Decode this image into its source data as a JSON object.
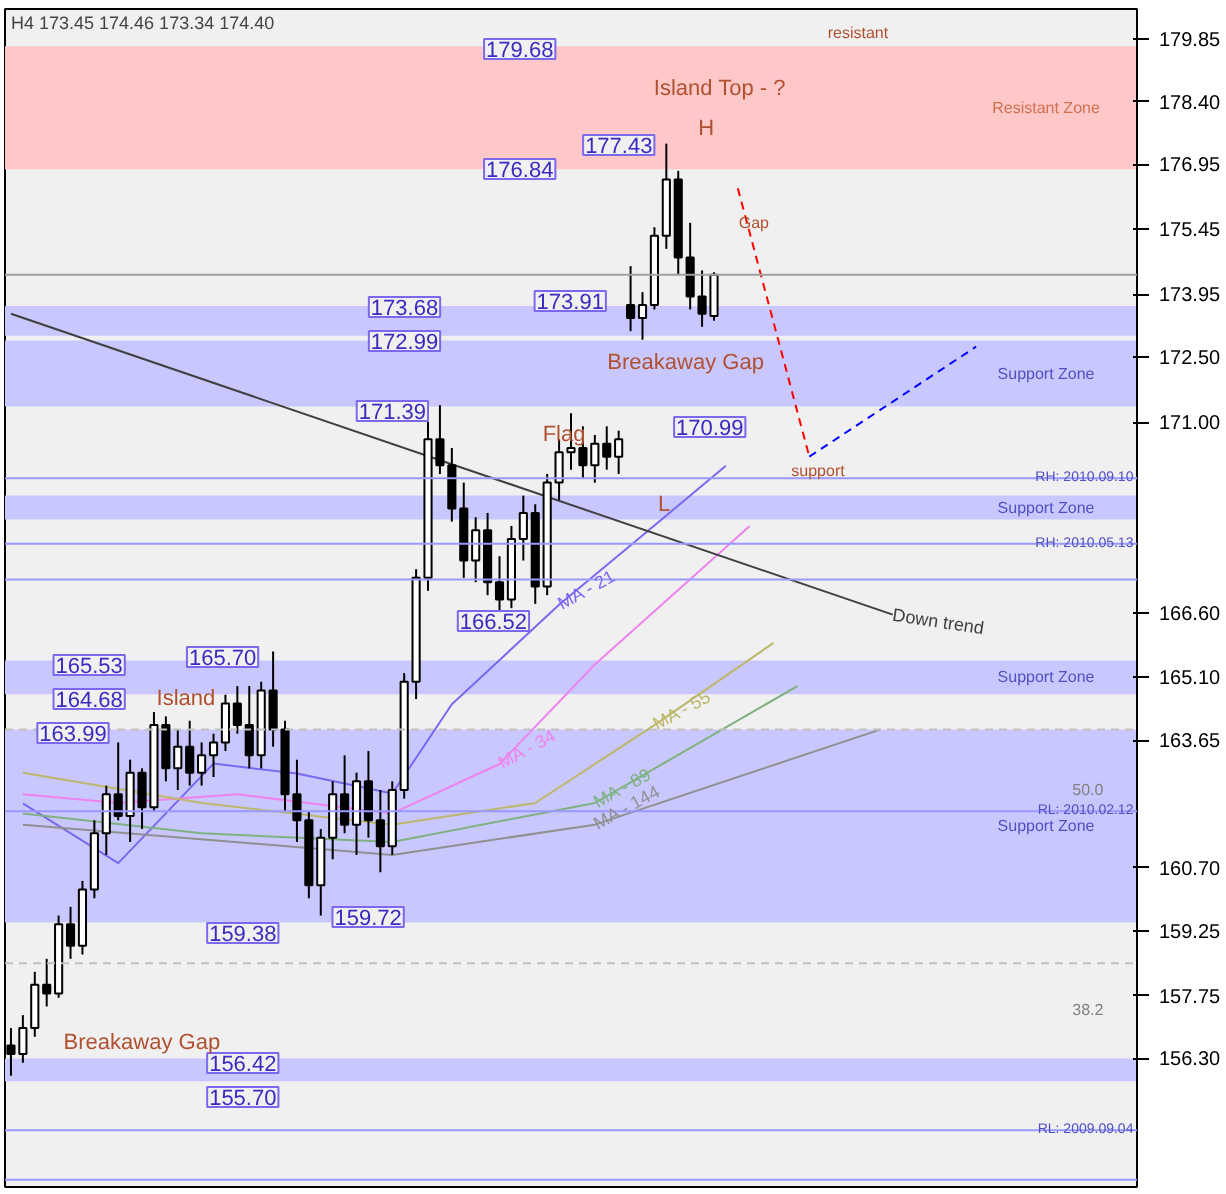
{
  "chart_data": {
    "type": "candlestick",
    "title": "H4 173.45 174.46 173.34 174.40",
    "categories": [
      null,
      null,
      null,
      null,
      null,
      null,
      null,
      null,
      null,
      null,
      null,
      null,
      null,
      null,
      null,
      null,
      null,
      null,
      null,
      null,
      null,
      null,
      null,
      null,
      null,
      null,
      null,
      null,
      null,
      null,
      null,
      null,
      null,
      null,
      null,
      null,
      null,
      null,
      null,
      null,
      null,
      null,
      null,
      null,
      null,
      null,
      null,
      null,
      null,
      null,
      null,
      null,
      null,
      null,
      null,
      null,
      null,
      null,
      null,
      null,
      null,
      null,
      null,
      null,
      null,
      null,
      null,
      null,
      null,
      null,
      null,
      null,
      null,
      null,
      null,
      null,
      null,
      null,
      null,
      null,
      null,
      null,
      null,
      null,
      null,
      null,
      null,
      null,
      null,
      null,
      null,
      null,
      null,
      null,
      null
    ],
    "ohlc": [
      [
        156.6,
        157.0,
        155.9,
        156.4
      ],
      [
        156.4,
        157.3,
        156.2,
        157.0
      ],
      [
        157.0,
        158.3,
        156.8,
        158.0
      ],
      [
        158.0,
        158.6,
        157.5,
        157.8
      ],
      [
        157.8,
        159.6,
        157.7,
        159.4
      ],
      [
        159.4,
        159.8,
        158.6,
        158.9
      ],
      [
        158.9,
        160.4,
        158.7,
        160.2
      ],
      [
        160.2,
        161.8,
        160.0,
        161.5
      ],
      [
        161.5,
        162.6,
        161.0,
        162.4
      ],
      [
        162.4,
        163.6,
        161.8,
        161.9
      ],
      [
        161.9,
        163.2,
        161.3,
        162.9
      ],
      [
        162.9,
        163.0,
        161.6,
        162.1
      ],
      [
        162.1,
        164.3,
        162.0,
        164.0
      ],
      [
        164.0,
        164.2,
        162.7,
        163.0
      ],
      [
        163.0,
        163.9,
        162.5,
        163.5
      ],
      [
        163.5,
        164.1,
        162.6,
        162.9
      ],
      [
        162.9,
        163.6,
        162.6,
        163.3
      ],
      [
        163.3,
        163.8,
        162.8,
        163.6
      ],
      [
        163.6,
        164.7,
        163.4,
        164.5
      ],
      [
        164.5,
        164.9,
        163.8,
        164.0
      ],
      [
        164.0,
        164.9,
        163.0,
        163.3
      ],
      [
        163.3,
        165.0,
        163.0,
        164.8
      ],
      [
        164.8,
        165.7,
        163.5,
        163.9
      ],
      [
        163.9,
        164.1,
        162.0,
        162.4
      ],
      [
        162.4,
        163.2,
        161.3,
        161.8
      ],
      [
        161.8,
        162.0,
        160.0,
        160.3
      ],
      [
        160.3,
        161.6,
        159.6,
        161.4
      ],
      [
        161.4,
        162.7,
        160.9,
        162.4
      ],
      [
        162.4,
        163.3,
        161.5,
        161.7
      ],
      [
        161.7,
        162.9,
        161.0,
        162.7
      ],
      [
        162.7,
        163.4,
        161.4,
        161.8
      ],
      [
        161.8,
        162.5,
        160.6,
        161.2
      ],
      [
        161.2,
        162.7,
        161.0,
        162.5
      ],
      [
        162.5,
        165.2,
        162.3,
        165.0
      ],
      [
        165.0,
        167.6,
        164.6,
        167.4
      ],
      [
        167.4,
        171.0,
        167.1,
        170.6
      ],
      [
        170.6,
        171.39,
        169.8,
        170.0
      ],
      [
        170.0,
        170.4,
        168.7,
        169.0
      ],
      [
        169.0,
        169.6,
        167.4,
        167.8
      ],
      [
        167.8,
        168.8,
        167.3,
        168.5
      ],
      [
        168.5,
        168.9,
        167.0,
        167.3
      ],
      [
        167.3,
        167.9,
        166.52,
        166.9
      ],
      [
        166.9,
        168.6,
        166.7,
        168.3
      ],
      [
        168.3,
        169.3,
        167.8,
        168.9
      ],
      [
        168.9,
        169.1,
        166.8,
        167.2
      ],
      [
        167.2,
        169.8,
        167.0,
        169.6
      ],
      [
        169.6,
        170.6,
        169.2,
        170.3
      ],
      [
        170.3,
        171.2,
        169.9,
        170.4
      ],
      [
        170.4,
        170.9,
        169.7,
        170.0
      ],
      [
        170.0,
        170.7,
        169.6,
        170.5
      ],
      [
        170.5,
        170.9,
        169.9,
        170.2
      ],
      [
        170.2,
        170.8,
        169.8,
        170.6
      ],
      [
        173.7,
        174.6,
        173.1,
        173.4
      ],
      [
        173.4,
        174.0,
        172.9,
        173.7
      ],
      [
        173.7,
        175.5,
        173.6,
        175.3
      ],
      [
        175.3,
        177.43,
        175.0,
        176.6
      ],
      [
        176.6,
        176.8,
        174.4,
        174.8
      ],
      [
        174.8,
        175.6,
        173.6,
        173.9
      ],
      [
        173.9,
        174.5,
        173.2,
        173.5
      ],
      [
        173.45,
        174.46,
        173.34,
        174.4
      ],
      null,
      null,
      null,
      null,
      null,
      null,
      null,
      null,
      null,
      null,
      null,
      null,
      null,
      null,
      null,
      null,
      null,
      null,
      null,
      null,
      null,
      null,
      null,
      null,
      null,
      null,
      null,
      null,
      null,
      null,
      null,
      null,
      null,
      null,
      null
    ],
    "series": [
      {
        "name": "MA - 21",
        "type": "line",
        "color": "#7b68ee",
        "values": [
          null,
          162.19,
          null,
          null,
          null,
          null,
          null,
          null,
          null,
          160.81,
          null,
          null,
          null,
          null,
          null,
          null,
          null,
          163.11,
          null,
          null,
          null,
          null,
          null,
          null,
          162.88,
          null,
          null,
          null,
          null,
          null,
          null,
          null,
          162.42,
          null,
          null,
          null,
          null,
          164.48,
          null,
          null,
          null,
          null,
          null,
          null,
          null,
          null,
          166.78,
          null,
          null,
          null,
          null,
          null,
          null,
          null,
          168.61,
          null,
          null,
          null,
          null,
          null,
          169.99,
          null,
          null,
          null,
          null,
          null,
          null,
          null,
          null,
          null,
          null,
          null,
          null,
          null,
          null,
          null,
          null,
          null,
          null,
          null,
          null,
          null,
          null,
          null,
          null,
          null,
          null,
          null,
          null,
          null,
          null,
          null,
          null,
          null,
          null
        ]
      },
      {
        "name": "MA - 34",
        "type": "line",
        "color": "#ee82ee",
        "values": [
          null,
          162.4,
          null,
          null,
          null,
          null,
          null,
          null,
          null,
          162.2,
          null,
          null,
          null,
          null,
          null,
          null,
          null,
          null,
          null,
          162.4,
          null,
          null,
          null,
          null,
          null,
          null,
          null,
          null,
          null,
          null,
          null,
          null,
          161.96,
          null,
          null,
          null,
          null,
          null,
          null,
          null,
          null,
          163.1,
          null,
          null,
          null,
          null,
          null,
          null,
          null,
          165.4,
          null,
          null,
          null,
          null,
          null,
          null,
          null,
          null,
          null,
          null,
          null,
          null,
          168.6,
          null,
          null,
          null,
          null,
          null,
          null,
          null,
          null,
          null,
          null,
          null,
          null,
          null,
          null,
          null,
          null,
          null,
          null,
          null,
          null,
          null,
          null,
          null,
          null,
          null,
          null,
          null,
          null,
          null,
          null,
          null,
          null
        ]
      },
      {
        "name": "MA - 55",
        "type": "line",
        "color": "#bdb76b",
        "values": [
          null,
          162.9,
          null,
          null,
          null,
          null,
          null,
          null,
          null,
          null,
          null,
          null,
          null,
          null,
          null,
          null,
          162.2,
          null,
          null,
          null,
          null,
          null,
          null,
          null,
          null,
          null,
          null,
          null,
          null,
          null,
          null,
          null,
          161.7,
          null,
          null,
          null,
          null,
          null,
          null,
          null,
          null,
          null,
          null,
          null,
          162.2,
          null,
          null,
          null,
          null,
          null,
          null,
          null,
          null,
          null,
          164.0,
          null,
          null,
          null,
          null,
          null,
          null,
          null,
          null,
          null,
          165.9,
          null,
          null,
          null,
          null,
          null,
          null,
          null,
          null,
          null,
          null,
          null,
          null,
          null,
          null,
          null,
          null,
          null,
          null,
          null,
          null,
          null,
          null,
          null,
          null,
          null,
          null,
          null,
          null,
          null,
          null
        ]
      },
      {
        "name": "MA - 89",
        "type": "line",
        "color": "#7fb07f",
        "values": [
          null,
          161.96,
          null,
          null,
          null,
          null,
          null,
          null,
          null,
          null,
          null,
          null,
          null,
          null,
          null,
          null,
          161.5,
          null,
          null,
          null,
          null,
          null,
          null,
          null,
          null,
          null,
          null,
          null,
          null,
          null,
          null,
          null,
          161.3,
          null,
          null,
          null,
          null,
          null,
          null,
          null,
          null,
          null,
          null,
          null,
          null,
          null,
          null,
          null,
          null,
          162.2,
          null,
          null,
          null,
          null,
          null,
          null,
          null,
          null,
          null,
          null,
          null,
          null,
          null,
          null,
          null,
          null,
          164.9,
          null,
          null,
          null,
          null,
          null,
          null,
          null,
          null,
          null,
          null,
          null,
          null,
          null,
          null,
          null,
          null,
          null,
          null,
          null,
          null,
          null,
          null,
          null,
          null,
          null,
          null,
          null,
          null
        ]
      },
      {
        "name": "MA - 144",
        "type": "line",
        "color": "#909090",
        "values": [
          null,
          161.7,
          null,
          null,
          null,
          null,
          null,
          null,
          null,
          null,
          null,
          null,
          null,
          null,
          null,
          null,
          null,
          null,
          null,
          null,
          null,
          null,
          null,
          null,
          null,
          null,
          null,
          null,
          null,
          null,
          null,
          null,
          161.0,
          null,
          null,
          null,
          null,
          null,
          null,
          null,
          null,
          null,
          null,
          null,
          null,
          null,
          null,
          null,
          null,
          161.7,
          null,
          null,
          null,
          null,
          null,
          null,
          null,
          null,
          null,
          null,
          null,
          null,
          null,
          null,
          null,
          null,
          null,
          null,
          null,
          null,
          null,
          null,
          null,
          163.9,
          null,
          null,
          null,
          null,
          null,
          null,
          null,
          null,
          null,
          null,
          null,
          null,
          null,
          null,
          null,
          null,
          null,
          null,
          null,
          null,
          null
        ]
      },
      {
        "name": "Down trend",
        "type": "line",
        "color": "#404040",
        "values": [
          173.5,
          null,
          null,
          null,
          null,
          null,
          null,
          null,
          null,
          null,
          null,
          null,
          null,
          null,
          null,
          null,
          null,
          null,
          null,
          null,
          null,
          null,
          null,
          null,
          null,
          null,
          null,
          null,
          null,
          null,
          null,
          null,
          null,
          null,
          null,
          null,
          null,
          null,
          null,
          null,
          null,
          null,
          null,
          null,
          null,
          null,
          null,
          null,
          null,
          null,
          null,
          null,
          null,
          null,
          null,
          null,
          null,
          null,
          null,
          null,
          null,
          null,
          null,
          null,
          null,
          null,
          null,
          null,
          null,
          null,
          null,
          null,
          null,
          null,
          166.55,
          null,
          null,
          null,
          null,
          null,
          null,
          null,
          null,
          null,
          null,
          null,
          null,
          null,
          null,
          null,
          null,
          null,
          null,
          null,
          null
        ]
      },
      {
        "type": "line",
        "color": "#ff0000",
        "line_style": "dashed",
        "values": [
          null,
          null,
          null,
          null,
          null,
          null,
          null,
          null,
          null,
          null,
          null,
          null,
          null,
          null,
          null,
          null,
          null,
          null,
          null,
          null,
          null,
          null,
          null,
          null,
          null,
          null,
          null,
          null,
          null,
          null,
          null,
          null,
          null,
          null,
          null,
          null,
          null,
          null,
          null,
          null,
          null,
          null,
          null,
          null,
          null,
          null,
          null,
          null,
          null,
          null,
          null,
          null,
          null,
          null,
          null,
          null,
          null,
          null,
          null,
          null,
          null,
          176.4,
          null,
          null,
          null,
          null,
          null,
          170.2,
          null,
          null,
          null,
          null,
          null,
          null,
          null,
          null,
          null,
          null,
          null,
          null,
          null,
          null,
          null,
          null,
          null,
          null,
          null,
          null,
          null,
          null,
          null,
          null,
          null,
          null,
          null
        ]
      },
      {
        "type": "line",
        "color": "#0000ff",
        "line_style": "dashed",
        "values": [
          null,
          null,
          null,
          null,
          null,
          null,
          null,
          null,
          null,
          null,
          null,
          null,
          null,
          null,
          null,
          null,
          null,
          null,
          null,
          null,
          null,
          null,
          null,
          null,
          null,
          null,
          null,
          null,
          null,
          null,
          null,
          null,
          null,
          null,
          null,
          null,
          null,
          null,
          null,
          null,
          null,
          null,
          null,
          null,
          null,
          null,
          null,
          null,
          null,
          null,
          null,
          null,
          null,
          null,
          null,
          null,
          null,
          null,
          null,
          null,
          null,
          null,
          null,
          null,
          null,
          null,
          null,
          170.2,
          null,
          null,
          null,
          null,
          null,
          null,
          null,
          null,
          null,
          null,
          null,
          null,
          null,
          172.74,
          null,
          null,
          null,
          null,
          null,
          null,
          null,
          null,
          null,
          null,
          null,
          null,
          null
        ]
      }
    ],
    "ylim": [
      153.33,
      180.54
    ],
    "yticks": [
      179.85,
      {
        "value": 178.4,
        "label": "178.40"
      },
      176.95,
      175.45,
      173.95,
      {
        "value": 172.5,
        "label": "172.50"
      },
      {
        "value": 171.0,
        "label": "171.00"
      },
      {
        "value": 166.6,
        "label": "166.60"
      },
      {
        "value": 165.1,
        "label": "165.10"
      },
      163.65,
      {
        "value": 160.7,
        "label": "160.70"
      },
      159.25,
      157.75,
      {
        "value": 156.3,
        "label": "156.30"
      }
    ],
    "tick_labels": "y",
    "grid": false,
    "bands": [
      {
        "axis": "y",
        "from": 176.84,
        "to": 179.68,
        "label": "Resistant Zone",
        "color": "#ffc8c8"
      },
      {
        "axis": "y",
        "from": 172.99,
        "to": 173.68,
        "color": "#c8c8ff"
      },
      {
        "axis": "y",
        "from": 171.36,
        "to": 172.88,
        "label": "Support Zone",
        "color": "#c8c8ff"
      },
      {
        "axis": "y",
        "from": 168.75,
        "to": 169.3,
        "label": "Support Zone",
        "color": "#c8c8ff"
      },
      {
        "axis": "y",
        "from": 164.71,
        "to": 165.49,
        "label": "Support Zone",
        "color": "#c8c8ff"
      },
      {
        "axis": "y",
        "from": 159.44,
        "to": 163.9,
        "label": "Support Zone",
        "color": "#c8c8ff"
      },
      {
        "axis": "y",
        "from": 155.77,
        "to": 156.3,
        "color": "#c8c8ff"
      }
    ],
    "ref_lines": [
      {
        "axis": "y",
        "value": 174.4,
        "color": "#a0a0a0"
      },
      {
        "axis": "y",
        "value": 169.7,
        "label": "RH: 2010.09.10",
        "color": "#9999ff"
      },
      {
        "axis": "y",
        "value": 168.19,
        "label": "RH: 2010.05.13",
        "color": "#9999ff"
      },
      {
        "axis": "y",
        "value": 167.36,
        "color": "#9999ff"
      },
      {
        "axis": "y",
        "value": 162.01,
        "label": "RL: 2010.02.12",
        "color": "#9999ff"
      },
      {
        "axis": "y",
        "value": 154.64,
        "label": "RL: 2009.09.04",
        "color": "#9999ff"
      },
      {
        "axis": "y",
        "value": 153.5,
        "color": "#9999ff"
      },
      {
        "axis": "y",
        "value": 163.9,
        "color": "#c0c0c0",
        "line_style": "dashed"
      },
      {
        "axis": "y",
        "value": 158.5,
        "color": "#c0c0c0",
        "line_style": "dashed"
      }
    ],
    "annotations": [
      "179.68",
      "176.84",
      "177.43",
      "173.91",
      "173.68",
      "172.99",
      "171.39",
      "170.99",
      "166.52",
      "165.53",
      "165.70",
      "164.68",
      "163.99",
      "159.38",
      "159.72",
      "156.42",
      "155.70",
      "Island Top - ?",
      "Island",
      "Flag",
      "H",
      "L",
      "Breakaway Gap",
      "Breakaway Gap",
      "Gap",
      "support",
      "resistant",
      "50.0",
      "38.2"
    ]
  }
}
